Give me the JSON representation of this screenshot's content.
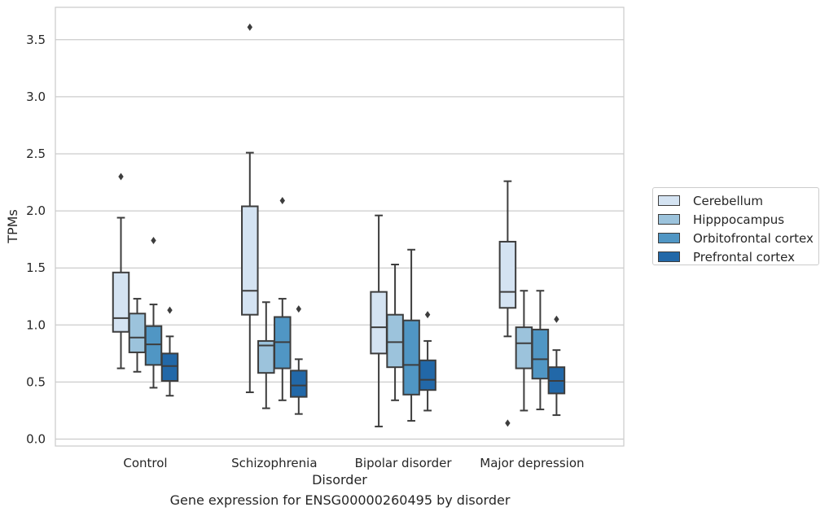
{
  "chart_data": {
    "type": "box",
    "title": "",
    "caption": "Gene expression for ENSG00000260495 by disorder",
    "xlabel": "Disorder",
    "ylabel": "TPMs",
    "ylim": [
      -0.05,
      3.75
    ],
    "yticks": [
      "0.0",
      "0.5",
      "1.0",
      "1.5",
      "2.0",
      "2.5",
      "3.0",
      "3.5"
    ],
    "grid": "horizontal",
    "legend_position": "right-center",
    "categories": [
      "Control",
      "Schizophrenia",
      "Bipolar disorder",
      "Major depression"
    ],
    "series": [
      {
        "name": "Cerebellum",
        "color": "#d4e3f2",
        "boxes": [
          {
            "whislo": 0.62,
            "q1": 0.94,
            "med": 1.06,
            "q3": 1.46,
            "whishi": 1.94,
            "fliers": [
              2.3
            ]
          },
          {
            "whislo": 0.41,
            "q1": 1.09,
            "med": 1.3,
            "q3": 2.04,
            "whishi": 2.51,
            "fliers": [
              3.61
            ]
          },
          {
            "whislo": 0.11,
            "q1": 0.75,
            "med": 0.98,
            "q3": 1.29,
            "whishi": 1.96,
            "fliers": []
          },
          {
            "whislo": 0.9,
            "q1": 1.15,
            "med": 1.29,
            "q3": 1.73,
            "whishi": 2.26,
            "fliers": [
              0.14
            ]
          }
        ]
      },
      {
        "name": "Hipppocampus",
        "color": "#9cc3dc",
        "boxes": [
          {
            "whislo": 0.59,
            "q1": 0.76,
            "med": 0.89,
            "q3": 1.1,
            "whishi": 1.23,
            "fliers": []
          },
          {
            "whislo": 0.27,
            "q1": 0.58,
            "med": 0.82,
            "q3": 0.86,
            "whishi": 1.2,
            "fliers": []
          },
          {
            "whislo": 0.34,
            "q1": 0.63,
            "med": 0.85,
            "q3": 1.09,
            "whishi": 1.53,
            "fliers": []
          },
          {
            "whislo": 0.25,
            "q1": 0.62,
            "med": 0.84,
            "q3": 0.98,
            "whishi": 1.3,
            "fliers": []
          }
        ]
      },
      {
        "name": "Orbitofrontal cortex",
        "color": "#5096c4",
        "boxes": [
          {
            "whislo": 0.45,
            "q1": 0.65,
            "med": 0.83,
            "q3": 0.99,
            "whishi": 1.18,
            "fliers": [
              1.74
            ]
          },
          {
            "whislo": 0.34,
            "q1": 0.62,
            "med": 0.85,
            "q3": 1.07,
            "whishi": 1.23,
            "fliers": [
              2.09
            ]
          },
          {
            "whislo": 0.16,
            "q1": 0.39,
            "med": 0.65,
            "q3": 1.04,
            "whishi": 1.66,
            "fliers": []
          },
          {
            "whislo": 0.26,
            "q1": 0.53,
            "med": 0.7,
            "q3": 0.96,
            "whishi": 1.3,
            "fliers": []
          }
        ]
      },
      {
        "name": "Prefrontal cortex",
        "color": "#2268a8",
        "boxes": [
          {
            "whislo": 0.38,
            "q1": 0.51,
            "med": 0.64,
            "q3": 0.75,
            "whishi": 0.9,
            "fliers": [
              1.13
            ]
          },
          {
            "whislo": 0.22,
            "q1": 0.37,
            "med": 0.47,
            "q3": 0.6,
            "whishi": 0.7,
            "fliers": [
              1.14
            ]
          },
          {
            "whislo": 0.25,
            "q1": 0.43,
            "med": 0.52,
            "q3": 0.69,
            "whishi": 0.86,
            "fliers": [
              1.09
            ]
          },
          {
            "whislo": 0.21,
            "q1": 0.4,
            "med": 0.51,
            "q3": 0.63,
            "whishi": 0.78,
            "fliers": [
              1.05
            ]
          }
        ]
      }
    ]
  }
}
